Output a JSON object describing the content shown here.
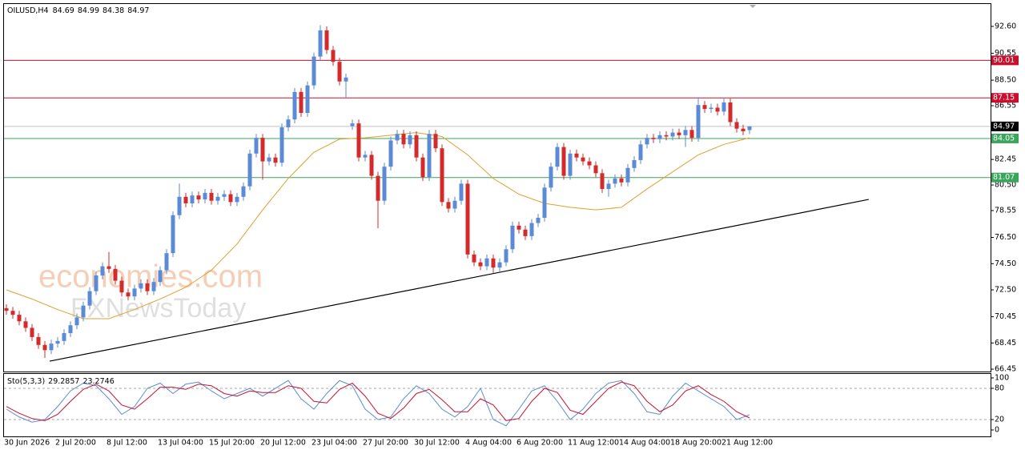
{
  "chart_data": [
    {
      "type": "candlestick",
      "title": "OILUSD,H4",
      "categories": [
        "30 Jun 2026",
        null,
        null,
        null,
        null,
        null,
        null,
        null,
        "2 Jul 20:00",
        null,
        null,
        null,
        null,
        null,
        null,
        null,
        "8 Jul 12:00",
        null,
        null,
        null,
        null,
        null,
        null,
        null,
        "13 Jul 04:00",
        null,
        null,
        null,
        null,
        null,
        null,
        null,
        "15 Jul 20:00",
        null,
        null,
        null,
        null,
        null,
        null,
        null,
        "20 Jul 12:00",
        null,
        null,
        null,
        null,
        null,
        null,
        null,
        "23 Jul 04:00",
        null,
        null,
        null,
        null,
        null,
        null,
        null,
        "27 Jul 20:00",
        null,
        null,
        null,
        null,
        null,
        null,
        null,
        "30 Jul 12:00",
        null,
        null,
        null,
        null,
        null,
        null,
        null,
        "4 Aug 04:00",
        null,
        null,
        null,
        null,
        null,
        null,
        null,
        "6 Aug 20:00",
        null,
        null,
        null,
        null,
        null,
        null,
        null,
        "11 Aug 12:00",
        null,
        null,
        null,
        null,
        null,
        null,
        null,
        "14 Aug 04:00",
        null,
        null,
        null,
        null,
        null,
        null,
        null,
        "18 Aug 20:00",
        null,
        null,
        null,
        null,
        null,
        null,
        null,
        "21 Aug 12:00",
        null,
        null,
        null,
        null
      ],
      "open": [
        71.1,
        70.9,
        70.6,
        70.1,
        69.6,
        68.9,
        68.3,
        67.9,
        68.4,
        68.6,
        69.2,
        69.8,
        70.4,
        71.3,
        72.4,
        73.6,
        74.3,
        74.1,
        73.2,
        72.3,
        72.0,
        72.6,
        73.0,
        72.4,
        73.1,
        74.0,
        75.3,
        78.2,
        79.6,
        79.1,
        79.7,
        79.4,
        79.9,
        79.3,
        79.6,
        79.8,
        79.2,
        79.6,
        80.4,
        82.9,
        84.1,
        82.3,
        82.6,
        82.2,
        84.9,
        85.5,
        87.6,
        86.0,
        88.1,
        90.3,
        92.3,
        90.8,
        89.9,
        88.4,
        85.0,
        85.2,
        82.6,
        82.8,
        81.2,
        79.3,
        81.9,
        83.9,
        84.4,
        83.6,
        84.3,
        82.6,
        81.1,
        84.4,
        83.3,
        79.2,
        78.7,
        79.3,
        80.6,
        75.2,
        74.6,
        74.3,
        74.9,
        74.2,
        74.6,
        75.6,
        77.4,
        77.1,
        76.6,
        77.6,
        78.0,
        80.3,
        81.9,
        83.4,
        81.2,
        82.9,
        82.6,
        82.3,
        82.0,
        81.4,
        80.2,
        80.6,
        81.0,
        80.7,
        81.8,
        82.4,
        83.6,
        84.1,
        84.0,
        84.3,
        84.2,
        84.5,
        84.3,
        84.7,
        84.1,
        86.6,
        86.3,
        86.4,
        86.1,
        86.8,
        85.3,
        84.8,
        84.69
      ],
      "high": [
        71.4,
        71.2,
        70.9,
        70.4,
        69.9,
        69.2,
        68.6,
        68.7,
        68.9,
        69.5,
        70.1,
        70.7,
        71.6,
        72.7,
        73.9,
        74.6,
        75.4,
        74.4,
        73.5,
        72.6,
        72.9,
        73.3,
        73.3,
        73.4,
        74.3,
        75.6,
        78.5,
        80.6,
        79.9,
        80.0,
        80.0,
        80.2,
        80.2,
        79.9,
        80.1,
        80.1,
        79.9,
        80.7,
        83.2,
        84.4,
        84.4,
        82.9,
        82.9,
        85.2,
        85.8,
        87.9,
        87.9,
        88.4,
        90.6,
        92.7,
        92.6,
        91.1,
        90.2,
        89.0,
        85.5,
        85.5,
        83.1,
        83.1,
        81.5,
        82.2,
        84.2,
        84.7,
        84.7,
        84.6,
        84.6,
        82.9,
        84.7,
        84.7,
        83.6,
        79.5,
        79.6,
        80.9,
        80.9,
        75.5,
        74.9,
        75.2,
        75.2,
        74.9,
        75.9,
        77.7,
        77.7,
        77.4,
        77.9,
        78.3,
        80.6,
        82.2,
        83.7,
        83.7,
        83.2,
        83.2,
        82.9,
        82.6,
        82.3,
        81.7,
        80.9,
        81.3,
        81.3,
        82.1,
        82.7,
        83.9,
        84.4,
        84.4,
        84.6,
        84.6,
        84.8,
        84.8,
        85.0,
        85.0,
        87.2,
        86.9,
        86.7,
        86.7,
        87.1,
        87.1,
        85.6,
        85.1,
        84.99
      ],
      "low": [
        70.6,
        70.3,
        69.8,
        69.3,
        68.6,
        68.0,
        67.3,
        67.6,
        68.1,
        68.3,
        68.9,
        69.5,
        70.1,
        71.0,
        72.1,
        73.3,
        73.8,
        72.9,
        72.0,
        71.7,
        71.7,
        72.3,
        72.1,
        72.1,
        72.8,
        73.7,
        75.0,
        77.9,
        78.8,
        78.8,
        79.1,
        79.1,
        79.0,
        79.0,
        79.3,
        78.9,
        78.9,
        79.3,
        80.1,
        82.6,
        80.9,
        82.0,
        81.9,
        81.9,
        84.6,
        85.2,
        85.7,
        85.7,
        87.8,
        90.0,
        90.5,
        89.6,
        88.1,
        87.2,
        84.7,
        82.3,
        82.3,
        80.9,
        77.2,
        79.0,
        81.6,
        83.6,
        83.3,
        83.3,
        82.3,
        80.8,
        80.8,
        83.0,
        78.9,
        78.4,
        78.4,
        79.0,
        74.9,
        74.3,
        74.0,
        74.0,
        73.8,
        73.9,
        74.3,
        75.3,
        76.8,
        76.3,
        76.3,
        77.3,
        77.7,
        80.0,
        81.6,
        80.9,
        80.9,
        82.3,
        82.0,
        81.7,
        81.1,
        79.9,
        79.6,
        80.3,
        80.4,
        80.4,
        81.5,
        82.1,
        83.3,
        83.7,
        83.7,
        83.9,
        83.9,
        84.0,
        83.4,
        83.8,
        83.8,
        86.0,
        86.0,
        85.8,
        85.8,
        85.0,
        84.5,
        84.3,
        84.38
      ],
      "close": [
        70.9,
        70.6,
        70.1,
        69.6,
        68.9,
        68.3,
        67.9,
        68.4,
        68.6,
        69.2,
        69.8,
        70.4,
        71.3,
        72.4,
        73.6,
        74.3,
        74.1,
        73.2,
        72.3,
        72.0,
        72.6,
        73.0,
        72.4,
        73.1,
        74.0,
        75.3,
        78.2,
        79.6,
        79.1,
        79.7,
        79.4,
        79.9,
        79.3,
        79.6,
        79.8,
        79.2,
        79.6,
        80.4,
        82.9,
        84.1,
        82.3,
        82.6,
        82.2,
        84.9,
        85.5,
        87.6,
        86.0,
        88.1,
        90.3,
        92.3,
        90.8,
        89.9,
        88.4,
        88.7,
        85.2,
        82.6,
        82.8,
        81.2,
        79.3,
        81.9,
        83.9,
        84.4,
        83.6,
        84.3,
        82.6,
        81.1,
        84.4,
        83.3,
        79.2,
        78.7,
        79.3,
        80.6,
        75.2,
        74.6,
        74.3,
        74.9,
        74.2,
        74.6,
        75.6,
        77.4,
        77.1,
        76.6,
        77.6,
        78.0,
        80.3,
        81.9,
        83.4,
        81.2,
        82.9,
        82.6,
        82.3,
        82.0,
        81.4,
        80.2,
        80.6,
        81.0,
        80.7,
        81.8,
        82.4,
        83.6,
        84.1,
        84.0,
        84.3,
        84.2,
        84.5,
        84.3,
        84.7,
        84.1,
        86.6,
        86.3,
        86.4,
        86.1,
        86.8,
        85.3,
        84.8,
        84.6,
        84.97
      ],
      "up_color": "#5b8bd6",
      "down_color": "#d42a2a",
      "ma": {
        "color": "#e0a030",
        "x": [
          0,
          4,
          8,
          12,
          16,
          20,
          24,
          28,
          32,
          36,
          40,
          44,
          48,
          52,
          56,
          60,
          64,
          68,
          72,
          76,
          80,
          84,
          88,
          92,
          96,
          100,
          104,
          108,
          112,
          116
        ],
        "values": [
          72.5,
          71.8,
          71.0,
          70.3,
          70.3,
          71.0,
          71.8,
          72.7,
          74.0,
          76.0,
          78.6,
          81.0,
          83.0,
          84.0,
          84.1,
          84.3,
          84.5,
          84.2,
          82.8,
          81.0,
          79.8,
          79.1,
          78.8,
          78.6,
          78.8,
          80.2,
          81.5,
          82.8,
          83.6,
          84.1
        ]
      },
      "levels": [
        {
          "value": 90.01,
          "color": "#c8102e"
        },
        {
          "value": 87.15,
          "color": "#c8102e"
        },
        {
          "value": 84.05,
          "color": "#3aa55d"
        },
        {
          "value": 81.07,
          "color": "#3aa55d"
        }
      ],
      "trendline": {
        "x": [
          6.75,
          134.6
        ],
        "y": [
          67.06,
          79.4
        ]
      },
      "ylim": [
        66.27,
        94.37
      ],
      "yticks": [
        {
          "value": 92.6,
          "label": "92.60"
        },
        90.55,
        {
          "value": 88.5,
          "label": "88.50"
        },
        86.55,
        82.45,
        {
          "value": 80.5,
          "label": "80.50"
        },
        78.55,
        {
          "value": 76.5,
          "label": "76.50"
        },
        {
          "value": 74.5,
          "label": "74.50"
        },
        {
          "value": 72.5,
          "label": "72.50"
        },
        70.45,
        68.45,
        66.45
      ],
      "watermarks": [
        "economies.com",
        "FXNewsToday"
      ]
    },
    {
      "type": "line",
      "title": "Sto(5,3,3)",
      "x": [
        0,
        2,
        4,
        6,
        8,
        10,
        12,
        14,
        16,
        18,
        20,
        22,
        24,
        26,
        28,
        30,
        32,
        34,
        36,
        38,
        40,
        42,
        44,
        46,
        48,
        50,
        52,
        54,
        56,
        58,
        60,
        62,
        64,
        66,
        68,
        70,
        72,
        74,
        76,
        78,
        80,
        82,
        84,
        86,
        88,
        90,
        92,
        94,
        96,
        98,
        100,
        102,
        104,
        106,
        108,
        110,
        112,
        114,
        116
      ],
      "series": [
        {
          "color": "#5b8bd6",
          "values": [
            40,
            25,
            15,
            20,
            45,
            75,
            90,
            85,
            60,
            30,
            45,
            80,
            90,
            70,
            88,
            92,
            75,
            60,
            70,
            80,
            65,
            80,
            95,
            60,
            40,
            70,
            95,
            85,
            40,
            20,
            25,
            60,
            85,
            70,
            40,
            25,
            45,
            80,
            20,
            8,
            40,
            75,
            85,
            55,
            20,
            40,
            70,
            90,
            95,
            70,
            35,
            30,
            65,
            90,
            75,
            60,
            45,
            20,
            29.2857
          ]
        },
        {
          "color": "#c8102e",
          "values": [
            45,
            32,
            22,
            18,
            30,
            55,
            78,
            88,
            75,
            48,
            40,
            60,
            82,
            82,
            78,
            88,
            85,
            70,
            65,
            75,
            72,
            72,
            85,
            80,
            55,
            52,
            78,
            90,
            65,
            32,
            22,
            42,
            70,
            78,
            58,
            35,
            35,
            60,
            48,
            18,
            22,
            55,
            80,
            72,
            38,
            30,
            55,
            80,
            92,
            85,
            55,
            35,
            48,
            75,
            85,
            68,
            55,
            35,
            23.2746
          ]
        }
      ],
      "levels": [
        20,
        80
      ],
      "ylim": [
        -12.3,
        109.2
      ],
      "yticks": [
        100,
        80,
        20,
        0
      ]
    }
  ]
}
